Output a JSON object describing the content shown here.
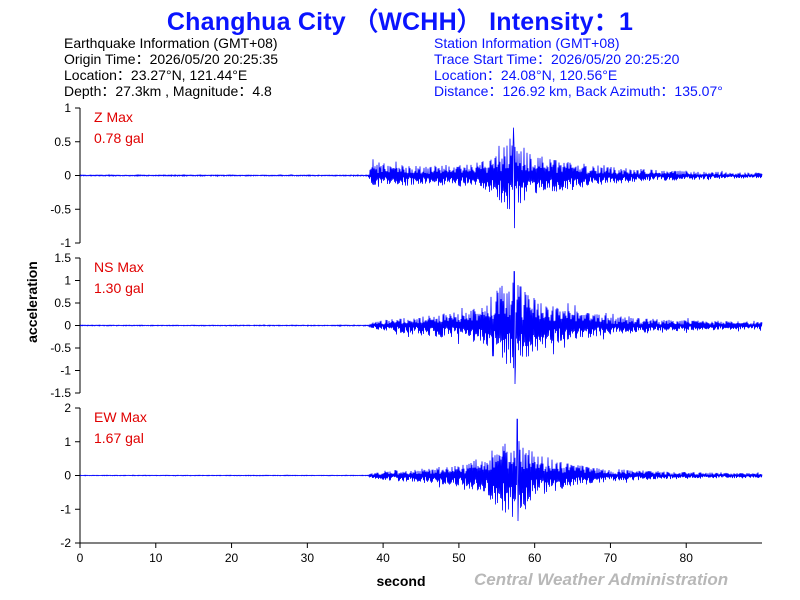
{
  "title": "Changhua City （WCHH） Intensity：1",
  "earthquake": {
    "heading": "Earthquake Information  (GMT+08)",
    "origin_time": "Origin Time：2026/05/20 20:25:35",
    "location": "Location：23.27°N, 121.44°E",
    "depth_magnitude": "Depth：27.3km , Magnitude：4.8"
  },
  "station": {
    "heading": "Station Information  (GMT+08)",
    "trace_start": "Trace Start Time：2026/05/20 20:25:20",
    "location": "Location：24.08°N, 120.56°E",
    "distance": "Distance：126.92 km, Back Azimuth：135.07°"
  },
  "footer": "Central Weather Administration",
  "colors": {
    "title": "#0a14ff",
    "trace": "#0000ff",
    "max_label": "#e00000",
    "footer": "#b8b8b8"
  },
  "chart_data": {
    "type": "line",
    "xlabel": "second",
    "ylabel": "acceleration",
    "xlim": [
      0,
      90
    ],
    "xticks": [
      0,
      10,
      20,
      30,
      40,
      50,
      60,
      70,
      80
    ],
    "grid": false,
    "panels": [
      {
        "component": "Z",
        "max_title": "Z Max",
        "max_value": "0.78 gal",
        "ylim": [
          -1,
          1
        ],
        "yticks": [
          1,
          0.5,
          0,
          -0.5,
          -1
        ],
        "envelope": {
          "t": [
            0,
            38,
            38.5,
            40,
            45,
            50,
            53,
            55,
            56,
            57,
            58,
            60,
            63,
            66,
            70,
            75,
            80,
            85,
            90
          ],
          "amp": [
            0.008,
            0.008,
            0.18,
            0.16,
            0.15,
            0.16,
            0.2,
            0.32,
            0.5,
            0.58,
            0.5,
            0.32,
            0.24,
            0.18,
            0.13,
            0.09,
            0.07,
            0.05,
            0.04
          ],
          "peak_max": 0.71,
          "peak_min": -0.78,
          "peak_t": 57.2
        }
      },
      {
        "component": "NS",
        "max_title": "NS Max",
        "max_value": "1.30 gal",
        "ylim": [
          -1.5,
          1.5
        ],
        "yticks": [
          1.5,
          1,
          0.5,
          0,
          -0.5,
          -1,
          -1.5
        ],
        "envelope": {
          "t": [
            0,
            38,
            38.5,
            40,
            45,
            50,
            53,
            55,
            56,
            57,
            58,
            60,
            63,
            66,
            70,
            75,
            80,
            85,
            90
          ],
          "amp": [
            0.01,
            0.01,
            0.06,
            0.12,
            0.22,
            0.3,
            0.42,
            0.8,
            0.95,
            1.05,
            0.9,
            0.6,
            0.42,
            0.3,
            0.22,
            0.15,
            0.12,
            0.1,
            0.08
          ],
          "peak_max": 1.2,
          "peak_min": -1.3,
          "peak_t": 57.3
        }
      },
      {
        "component": "EW",
        "max_title": "EW Max",
        "max_value": "1.67 gal",
        "ylim": [
          -2,
          2
        ],
        "yticks": [
          2,
          1,
          0,
          -1,
          -2
        ],
        "envelope": {
          "t": [
            0,
            38,
            38.5,
            40,
            45,
            50,
            53,
            55,
            56,
            57,
            58,
            60,
            63,
            66,
            70,
            75,
            80,
            85,
            90
          ],
          "amp": [
            0.01,
            0.01,
            0.08,
            0.14,
            0.22,
            0.3,
            0.5,
            0.9,
            1.1,
            1.25,
            1.05,
            0.7,
            0.45,
            0.3,
            0.2,
            0.14,
            0.1,
            0.08,
            0.07
          ],
          "peak_max": 1.67,
          "peak_min": -1.35,
          "peak_t": 57.7
        }
      }
    ]
  }
}
